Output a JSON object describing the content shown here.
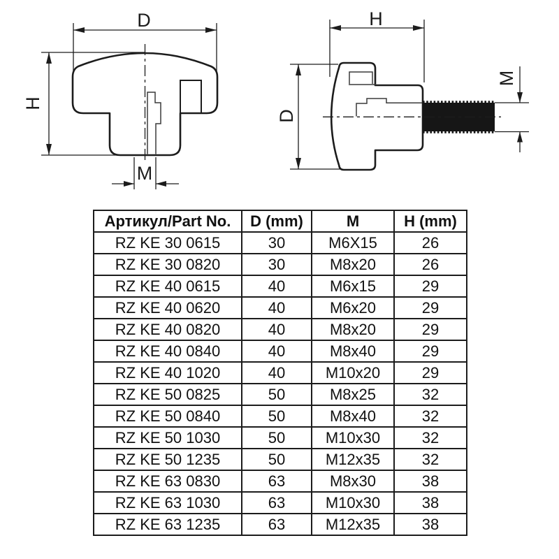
{
  "page": {
    "background": "#ffffff",
    "line_color": "#1c1c1c",
    "thread_fill": "#161616"
  },
  "drawings": {
    "front_view": {
      "labels": {
        "diameter": "D",
        "height": "H",
        "thread": "M"
      }
    },
    "side_view": {
      "labels": {
        "height": "H",
        "diameter": "D",
        "thread": "M"
      }
    }
  },
  "table": {
    "headers": [
      "Артикул/Part No.",
      "D (mm)",
      "M",
      "H (mm)"
    ],
    "rows": [
      [
        "RZ KE 30 0615",
        "30",
        "M6X15",
        "26"
      ],
      [
        "RZ KE 30 0820",
        "30",
        "M8x20",
        "26"
      ],
      [
        "RZ KE 40 0615",
        "40",
        "M6x15",
        "29"
      ],
      [
        "RZ KE 40 0620",
        "40",
        "M6x20",
        "29"
      ],
      [
        "RZ KE 40 0820",
        "40",
        "M8x20",
        "29"
      ],
      [
        "RZ KE 40 0840",
        "40",
        "M8x40",
        "29"
      ],
      [
        "RZ KE 40 1020",
        "40",
        "M10x20",
        "29"
      ],
      [
        "RZ KE 50 0825",
        "50",
        "M8x25",
        "32"
      ],
      [
        "RZ KE 50 0840",
        "50",
        "M8x40",
        "32"
      ],
      [
        "RZ KE 50 1030",
        "50",
        "M10x30",
        "32"
      ],
      [
        "RZ KE 50 1235",
        "50",
        "M12x35",
        "32"
      ],
      [
        "RZ KE 63 0830",
        "63",
        "M8x30",
        "38"
      ],
      [
        "RZ KE 63 1030",
        "63",
        "M10x30",
        "38"
      ],
      [
        "RZ KE 63 1235",
        "63",
        "M12x35",
        "38"
      ]
    ]
  }
}
